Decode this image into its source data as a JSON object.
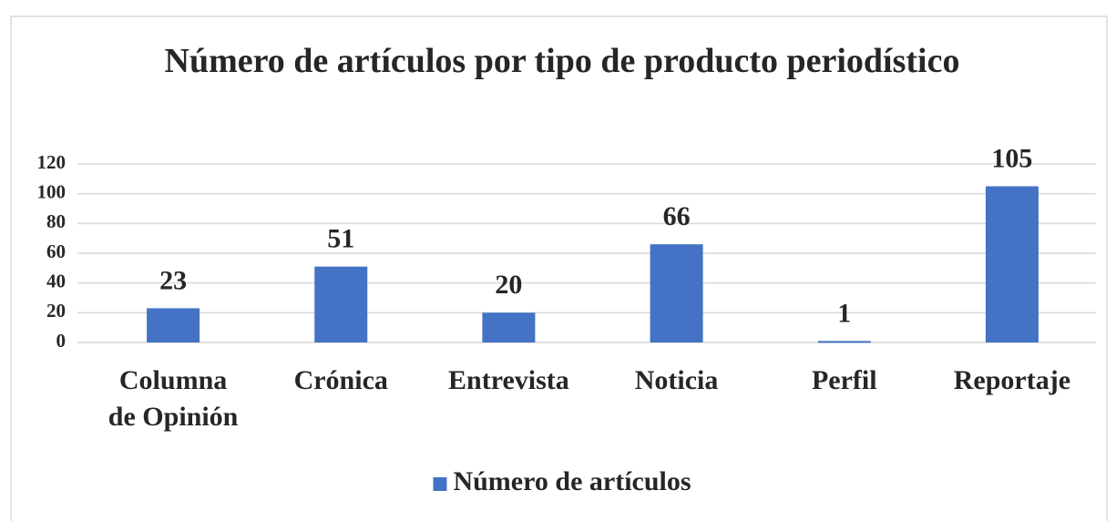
{
  "chart_data": {
    "type": "bar",
    "title": "Número de artículos por tipo de producto periodístico",
    "categories": [
      "Columna de Opinión",
      "Crónica",
      "Entrevista",
      "Noticia",
      "Perfil",
      "Reportaje"
    ],
    "series": [
      {
        "name": "Número de artículos",
        "color": "#4472c4",
        "values": [
          23,
          51,
          20,
          66,
          1,
          105
        ]
      }
    ],
    "ylim": [
      0,
      120
    ],
    "yticks": [
      0,
      20,
      40,
      60,
      80,
      100,
      120
    ],
    "grid": true,
    "legend": "bottom"
  }
}
